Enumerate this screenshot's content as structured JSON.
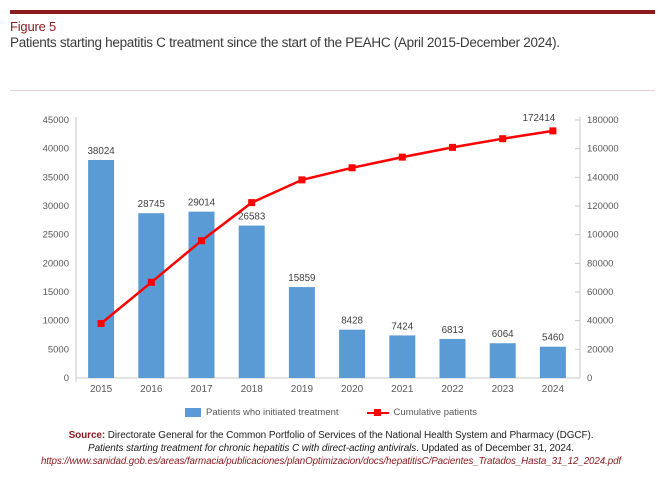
{
  "theme": {
    "accent": "#8A1A1E",
    "separator": "#e2cfcf",
    "axis_text": "#595959",
    "axis_line": "#c9c9c9",
    "data_label": "#404040"
  },
  "header": {
    "figure_label": "Figure 5",
    "title": "Patients starting hepatitis C treatment since the start of the PEAHC (April 2015-December 2024)."
  },
  "chart_data": {
    "type": "bar",
    "subtype": "combo-bar-line",
    "categories": [
      "2015",
      "2016",
      "2017",
      "2018",
      "2019",
      "2020",
      "2021",
      "2022",
      "2023",
      "2024"
    ],
    "series": [
      {
        "name": "Patients who initiated treatment",
        "type": "bar",
        "axis": "left",
        "color": "#5B9BD5",
        "values": [
          38024,
          28745,
          29014,
          26583,
          15859,
          8428,
          7424,
          6813,
          6064,
          5460
        ],
        "data_labels": "all"
      },
      {
        "name": "Cumulative patients",
        "type": "line",
        "axis": "right",
        "color": "#FF0000",
        "marker": "square",
        "values": [
          38024,
          66769,
          95783,
          122366,
          138225,
          146653,
          154077,
          160890,
          166954,
          172414
        ],
        "data_labels": "last",
        "last_label": "172414"
      }
    ],
    "left_axis": {
      "min": 0,
      "max": 45000,
      "step": 5000
    },
    "right_axis": {
      "min": 0,
      "max": 180000,
      "step": 20000
    },
    "grid": false,
    "legend_position": "bottom",
    "xlabel": "",
    "ylabel": ""
  },
  "source": {
    "label": "Source:",
    "line1_rest": " Directorate General for the Common Portfolio of Services of the National Health System and Pharmacy (DGCF).",
    "line2_italic": "Patients starting treatment for chronic hepatitis C with direct-acting antivirals",
    "line2_rest": ". Updated as of December 31, 2024.",
    "url": "https://www.sanidad.gob.es/areas/farmacia/publicaciones/planOptimizacion/docs/hepatitisC/Pacientes_Tratados_Hasta_31_12_2024.pdf"
  }
}
